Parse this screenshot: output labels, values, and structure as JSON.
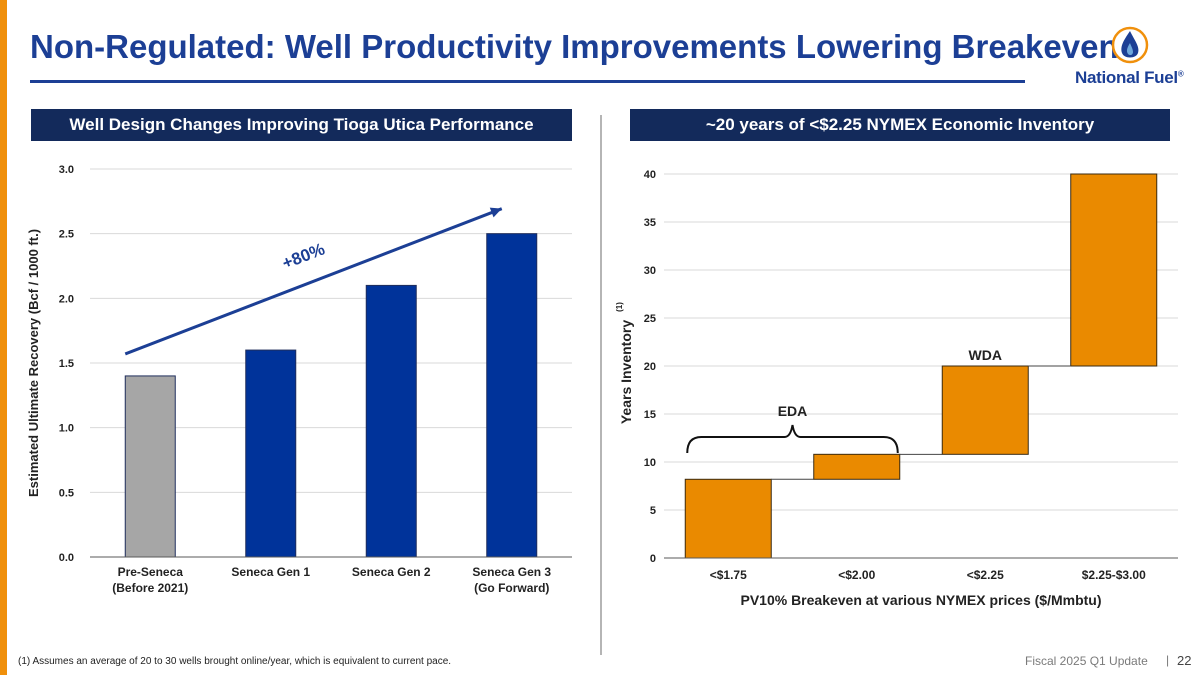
{
  "title": "Non-Regulated: Well Productivity Improvements Lowering Breakevens",
  "logo": {
    "text": "National Fuel",
    "mark": "®"
  },
  "colors": {
    "brand": "#1c3f95",
    "accent": "#f0900c",
    "header_bg": "#132a5b",
    "bar_blue": "#00339a",
    "bar_gray": "#a6a6a6",
    "bar_orange": "#ea8a00"
  },
  "chart_data": [
    {
      "type": "bar",
      "title": "Well Design Changes Improving Tioga Utica Performance",
      "ylabel": "Estimated Ultimate Recovery (Bcf / 1000 ft.)",
      "xlabel": "",
      "categories": [
        {
          "line1": "Pre-Seneca",
          "line2": "(Before 2021)"
        },
        {
          "line1": "Seneca Gen 1",
          "line2": ""
        },
        {
          "line1": "Seneca Gen 2",
          "line2": ""
        },
        {
          "line1": "Seneca Gen 3",
          "line2": "(Go Forward)"
        }
      ],
      "values": [
        1.4,
        1.6,
        2.1,
        2.5
      ],
      "ylim": [
        0,
        3.0
      ],
      "yticks": [
        "0.0",
        "0.5",
        "1.0",
        "1.5",
        "2.0",
        "2.5",
        "3.0"
      ],
      "grid": true,
      "annotation": "+80%"
    },
    {
      "type": "bar",
      "subtype": "waterfall",
      "title": "~20 years of <$2.25 NYMEX Economic Inventory",
      "ylabel": "Years Inventory",
      "ylabel_footnote": "(1)",
      "xlabel": "PV10% Breakeven at various NYMEX prices ($/Mmbtu)",
      "categories": [
        "<$1.75",
        "<$2.00",
        "<$2.25",
        "$2.25-$3.00"
      ],
      "segments": [
        [
          0,
          8.2
        ],
        [
          8.2,
          10.8
        ],
        [
          10.8,
          20
        ],
        [
          20,
          40
        ]
      ],
      "ylim": [
        0,
        40
      ],
      "yticks": [
        "0",
        "5",
        "10",
        "15",
        "20",
        "25",
        "30",
        "35",
        "40"
      ],
      "grid": true,
      "annotations": [
        "EDA",
        "WDA"
      ]
    }
  ],
  "footnote": "(1)    Assumes an average of 20 to 30 wells brought online/year, which is equivalent to current pace.",
  "footer": {
    "label": "Fiscal 2025 Q1 Update",
    "separator": "|",
    "page": "22"
  }
}
